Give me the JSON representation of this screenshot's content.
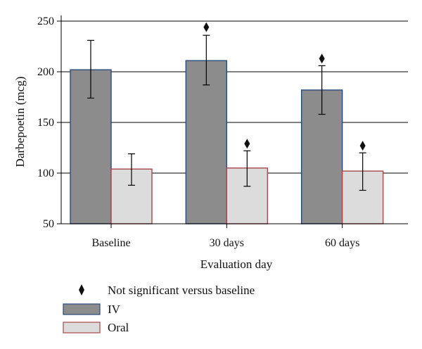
{
  "chart_data": {
    "type": "bar",
    "title": "",
    "xlabel": "Evaluation day",
    "ylabel": "Darbepoetin (mcg)",
    "categories": [
      "Baseline",
      "30 days",
      "60 days"
    ],
    "ylim": [
      50,
      250
    ],
    "yticks": [
      50,
      100,
      150,
      200,
      250
    ],
    "grid": true,
    "series": [
      {
        "name": "IV",
        "color": "#8c8c8c",
        "edge_color": "#2a4a7a",
        "values": [
          202,
          211,
          182
        ],
        "error_low": [
          174,
          187,
          158
        ],
        "error_high": [
          231,
          236,
          206
        ]
      },
      {
        "name": "Oral",
        "color": "#dcdcdc",
        "edge_color": "#a84848",
        "values": [
          104,
          105,
          102
        ],
        "error_low": [
          88,
          87,
          83
        ],
        "error_high": [
          119,
          122,
          120
        ]
      }
    ],
    "markers": {
      "label": "Not significant versus baseline",
      "symbol": "diamond",
      "points": [
        {
          "category": "30 days",
          "series": "IV",
          "y": 244
        },
        {
          "category": "30 days",
          "series": "Oral",
          "y": 129
        },
        {
          "category": "60 days",
          "series": "IV",
          "y": 213
        },
        {
          "category": "60 days",
          "series": "Oral",
          "y": 127
        }
      ]
    },
    "legend_position": "bottom-left"
  }
}
